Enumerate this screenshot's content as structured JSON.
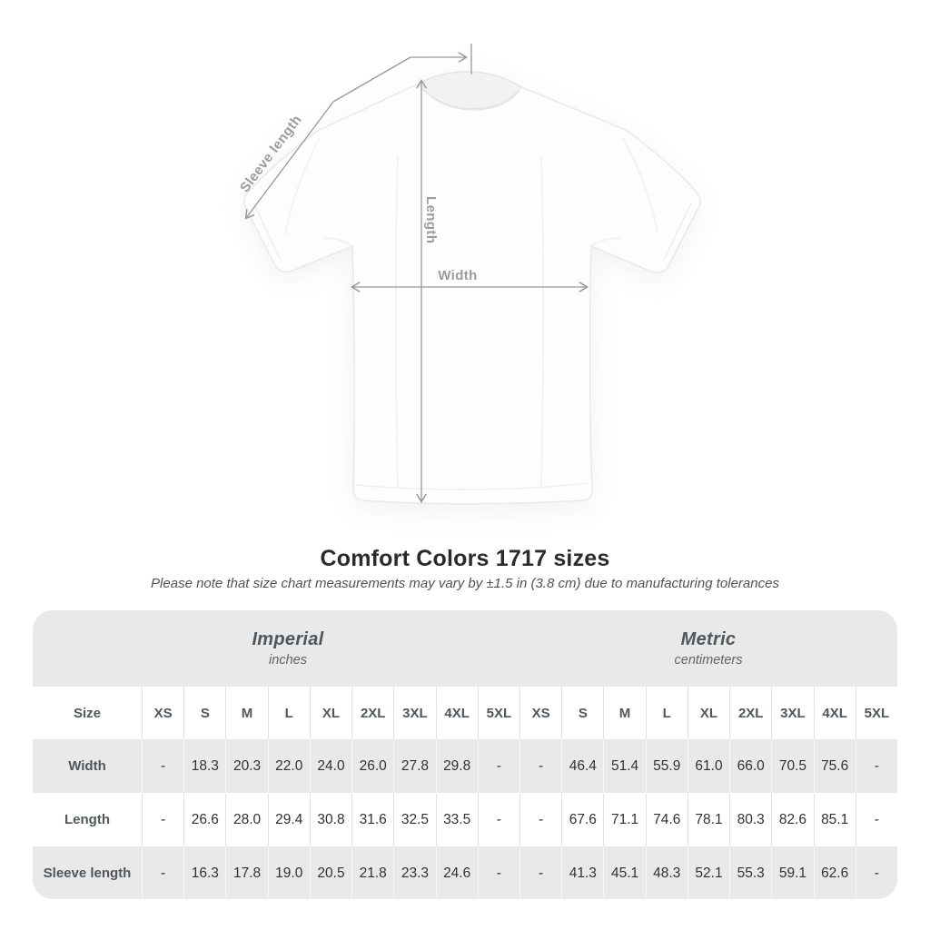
{
  "figure": {
    "labels": {
      "sleeve_length": "Sleeve length",
      "length": "Length",
      "width": "Width"
    }
  },
  "title": "Comfort Colors 1717 sizes",
  "note": "Please note that size chart measurements may vary by ±1.5 in (3.8 cm) due to manufacturing tolerances",
  "table": {
    "size_header": "Size",
    "unit_groups": [
      {
        "name": "Imperial",
        "unit": "inches"
      },
      {
        "name": "Metric",
        "unit": "centimeters"
      }
    ],
    "sizes": [
      "XS",
      "S",
      "M",
      "L",
      "XL",
      "2XL",
      "3XL",
      "4XL",
      "5XL"
    ],
    "rows": [
      {
        "label": "Width",
        "imperial": [
          "-",
          "18.3",
          "20.3",
          "22.0",
          "24.0",
          "26.0",
          "27.8",
          "29.8",
          "-"
        ],
        "metric": [
          "-",
          "46.4",
          "51.4",
          "55.9",
          "61.0",
          "66.0",
          "70.5",
          "75.6",
          "-"
        ]
      },
      {
        "label": "Length",
        "imperial": [
          "-",
          "26.6",
          "28.0",
          "29.4",
          "30.8",
          "31.6",
          "32.5",
          "33.5",
          "-"
        ],
        "metric": [
          "-",
          "67.6",
          "71.1",
          "74.6",
          "78.1",
          "80.3",
          "82.6",
          "85.1",
          "-"
        ]
      },
      {
        "label": "Sleeve length",
        "imperial": [
          "-",
          "16.3",
          "17.8",
          "19.0",
          "20.5",
          "21.8",
          "23.3",
          "24.6",
          "-"
        ],
        "metric": [
          "-",
          "41.3",
          "45.1",
          "48.3",
          "52.1",
          "55.3",
          "59.1",
          "62.6",
          "-"
        ]
      }
    ]
  },
  "colors": {
    "card_gray": "#e9e9e9",
    "measure_line": "#97999b",
    "measure_label": "#989da1",
    "title_text": "#2b2b2b",
    "header_text": "#4f565c",
    "value_text": "#2f3234"
  }
}
